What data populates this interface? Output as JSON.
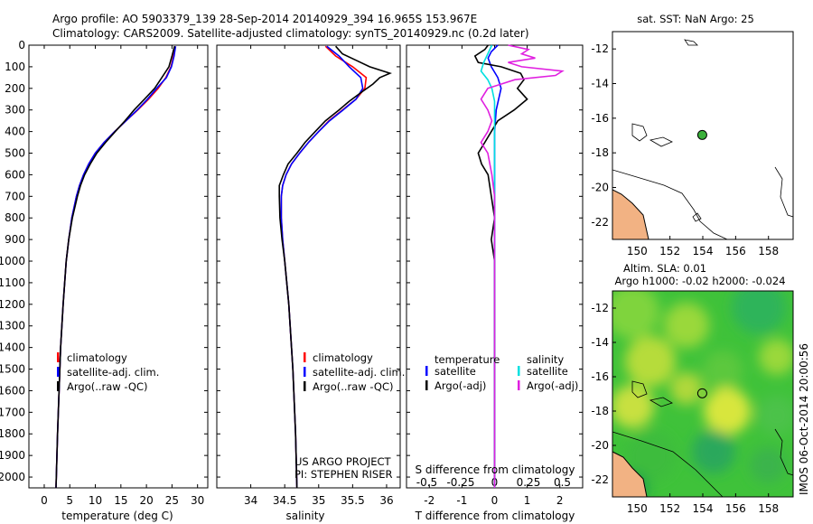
{
  "header": {
    "line1": "Argo profile: AO 5903379_139 28-Sep-2014 20140929_394 16.965S 153.967E",
    "line2": "Climatology: CARS2009. Satellite-adjusted climatology: synTS_20140929.nc (0.2d later)"
  },
  "chart_data": [
    {
      "type": "line",
      "id": "temperature",
      "xlabel": "temperature (deg C)",
      "ylabel": "",
      "xlim": [
        -3,
        32
      ],
      "ylim": [
        2050,
        0
      ],
      "xticks": [
        0,
        5,
        10,
        15,
        20,
        25,
        30
      ],
      "yticks": [
        0,
        100,
        200,
        300,
        400,
        500,
        600,
        700,
        800,
        900,
        1000,
        1100,
        1200,
        1300,
        1400,
        1500,
        1600,
        1700,
        1800,
        1900,
        2000
      ],
      "legend": [
        "climatology",
        "satellite-adj. clim.",
        "Argo(..raw -QC)"
      ],
      "series": [
        {
          "name": "climatology",
          "color": "#ff0000",
          "depth": [
            5,
            50,
            100,
            150,
            200,
            250,
            300,
            350,
            400,
            450,
            500,
            550,
            600,
            650,
            700,
            800,
            900,
            1000,
            1200,
            1400,
            1600,
            1800,
            2050
          ],
          "values": [
            25.6,
            25.3,
            24.8,
            23.8,
            22.3,
            20.4,
            18.3,
            16.0,
            13.8,
            11.7,
            10.0,
            8.7,
            7.7,
            6.9,
            6.3,
            5.4,
            4.8,
            4.3,
            3.7,
            3.2,
            2.9,
            2.6,
            2.3
          ]
        },
        {
          "name": "satellite-adj. clim.",
          "color": "#0000ff",
          "depth": [
            5,
            50,
            100,
            150,
            200,
            250,
            300,
            350,
            400,
            450,
            500,
            550,
            600,
            650,
            700,
            800,
            900,
            1000,
            1200,
            1400,
            1600,
            1800,
            2050
          ],
          "values": [
            25.7,
            25.4,
            24.9,
            23.9,
            22.0,
            20.2,
            18.2,
            16.0,
            13.8,
            11.7,
            10.0,
            8.7,
            7.7,
            6.9,
            6.3,
            5.4,
            4.8,
            4.3,
            3.7,
            3.2,
            2.9,
            2.6,
            2.3
          ]
        },
        {
          "name": "Argo(..raw -QC)",
          "color": "#000000",
          "depth": [
            5,
            50,
            100,
            150,
            200,
            250,
            300,
            350,
            400,
            450,
            500,
            550,
            600,
            650,
            700,
            800,
            900,
            1000,
            1200,
            1400,
            1600,
            1800,
            2050
          ],
          "values": [
            25.5,
            25.0,
            24.4,
            23.0,
            21.6,
            19.6,
            17.6,
            15.8,
            13.9,
            12.0,
            10.3,
            9.0,
            7.9,
            7.1,
            6.5,
            5.5,
            4.8,
            4.3,
            3.7,
            3.2,
            2.9,
            2.6,
            2.3
          ]
        }
      ]
    },
    {
      "type": "line",
      "id": "salinity",
      "xlabel": "salinity",
      "xlim": [
        33.5,
        36.2
      ],
      "ylim": [
        2050,
        0
      ],
      "xticks": [
        34,
        34.5,
        35,
        35.5,
        36
      ],
      "legend": [
        "climatology",
        "satellite-adj. clim.",
        "Argo(..raw -QC)"
      ],
      "annotation": [
        "US ARGO PROJECT",
        "PI: STEPHEN RISER"
      ],
      "series": [
        {
          "name": "climatology",
          "color": "#ff0000",
          "depth": [
            5,
            50,
            100,
            150,
            200,
            250,
            300,
            350,
            400,
            450,
            500,
            550,
            600,
            650,
            700,
            800,
            900,
            1000,
            1200,
            1500,
            1800,
            2050
          ],
          "values": [
            35.1,
            35.25,
            35.5,
            35.7,
            35.68,
            35.55,
            35.35,
            35.15,
            35.0,
            34.85,
            34.72,
            34.6,
            34.52,
            34.47,
            34.45,
            34.45,
            34.47,
            34.5,
            34.56,
            34.62,
            34.66,
            34.68
          ]
        },
        {
          "name": "satellite-adj. clim.",
          "color": "#0000ff",
          "depth": [
            5,
            50,
            100,
            150,
            200,
            250,
            300,
            350,
            400,
            450,
            500,
            550,
            600,
            650,
            700,
            800,
            900,
            1000,
            1200,
            1500,
            1800,
            2050
          ],
          "values": [
            35.12,
            35.3,
            35.45,
            35.62,
            35.65,
            35.55,
            35.36,
            35.16,
            35.0,
            34.85,
            34.72,
            34.6,
            34.52,
            34.47,
            34.45,
            34.45,
            34.47,
            34.5,
            34.56,
            34.62,
            34.66,
            34.68
          ]
        },
        {
          "name": "Argo(..raw -QC)",
          "color": "#000000",
          "depth": [
            5,
            40,
            70,
            100,
            130,
            150,
            180,
            220,
            260,
            300,
            350,
            400,
            450,
            500,
            550,
            600,
            650,
            700,
            800,
            900,
            1000,
            1200,
            1500,
            1800,
            2050
          ],
          "values": [
            35.25,
            35.35,
            35.55,
            35.75,
            36.05,
            35.9,
            35.8,
            35.62,
            35.45,
            35.3,
            35.1,
            34.95,
            34.8,
            34.68,
            34.55,
            34.48,
            34.42,
            34.42,
            34.43,
            34.46,
            34.5,
            34.56,
            34.62,
            34.66,
            34.68
          ]
        }
      ]
    },
    {
      "type": "line",
      "id": "differences",
      "xlabel": "T difference from climatology",
      "xlabel_top": "S difference from climatology",
      "xlim": [
        -2.7,
        2.7
      ],
      "ylim": [
        2050,
        0
      ],
      "xticks_bottom": [
        -2,
        -1,
        0,
        1,
        2
      ],
      "xticks_top": [
        -0.5,
        -0.25,
        0,
        0.25,
        0.5
      ],
      "legend_titles": [
        "temperature",
        "salinity"
      ],
      "legend": [
        "satellite",
        "Argo(-adj)",
        "satellite",
        "Argo(-adj)"
      ],
      "series": [
        {
          "name": "temperature satellite",
          "color": "#0000ff",
          "depth": [
            0,
            30,
            60,
            100,
            150,
            200,
            300,
            400,
            600,
            1000,
            2050
          ],
          "values": [
            0.1,
            -0.1,
            -0.2,
            -0.1,
            0.1,
            0.2,
            0.05,
            0,
            0,
            0,
            0
          ]
        },
        {
          "name": "temperature Argo(-adj)",
          "color": "#000000",
          "depth": [
            0,
            20,
            50,
            80,
            100,
            130,
            160,
            200,
            250,
            300,
            350,
            400,
            450,
            500,
            550,
            600,
            700,
            800,
            900,
            1000,
            1200,
            1500,
            2050
          ],
          "values": [
            -0.2,
            -0.3,
            -0.6,
            -0.5,
            0.2,
            0.8,
            0.9,
            0.7,
            1.0,
            0.6,
            0.1,
            -0.1,
            -0.3,
            -0.5,
            -0.4,
            -0.2,
            -0.1,
            0,
            -0.1,
            0,
            0,
            0,
            0
          ]
        },
        {
          "name": "salinity satellite",
          "color": "#00e0e0",
          "depth": [
            0,
            40,
            80,
            120,
            160,
            200,
            260,
            400,
            700,
            1000,
            2050
          ],
          "values": [
            -0.02,
            -0.05,
            -0.08,
            -0.1,
            -0.05,
            -0.02,
            0,
            0,
            0,
            0,
            0
          ]
        },
        {
          "name": "salinity Argo(-adj)",
          "color": "#e020e0",
          "depth": [
            0,
            20,
            40,
            60,
            80,
            100,
            120,
            140,
            160,
            180,
            200,
            250,
            300,
            350,
            400,
            450,
            500,
            600,
            700,
            800,
            1000,
            1500,
            2050
          ],
          "values": [
            0.1,
            0.25,
            0.2,
            0.3,
            0.1,
            0.2,
            0.5,
            0.45,
            0.15,
            0.05,
            -0.05,
            -0.1,
            -0.05,
            -0.02,
            -0.05,
            -0.1,
            -0.05,
            -0.02,
            0,
            0,
            0,
            0,
            0
          ]
        }
      ]
    },
    {
      "type": "map",
      "id": "sst-map",
      "title": "sat. SST: NaN Argo: 25",
      "xlim": [
        148.5,
        159.5
      ],
      "ylim": [
        -23,
        -11
      ],
      "xticks": [
        150,
        152,
        154,
        156,
        158
      ],
      "yticks": [
        -12,
        -14,
        -16,
        -18,
        -20,
        -22
      ],
      "argo_position": {
        "lon": 153.967,
        "lat": -16.965
      }
    },
    {
      "type": "heatmap",
      "id": "sla-map",
      "title1": "Altim. SLA: 0.01",
      "title2": "Argo h1000: -0.02 h2000: -0.024",
      "xlim": [
        148.5,
        159.5
      ],
      "ylim": [
        -23,
        -11
      ],
      "xticks": [
        150,
        152,
        154,
        156,
        158
      ],
      "yticks": [
        -12,
        -14,
        -16,
        -18,
        -20,
        -22
      ],
      "argo_position": {
        "lon": 153.967,
        "lat": -16.965
      },
      "side_label": "IMOS 06-Oct-2014 20:00:56"
    }
  ]
}
